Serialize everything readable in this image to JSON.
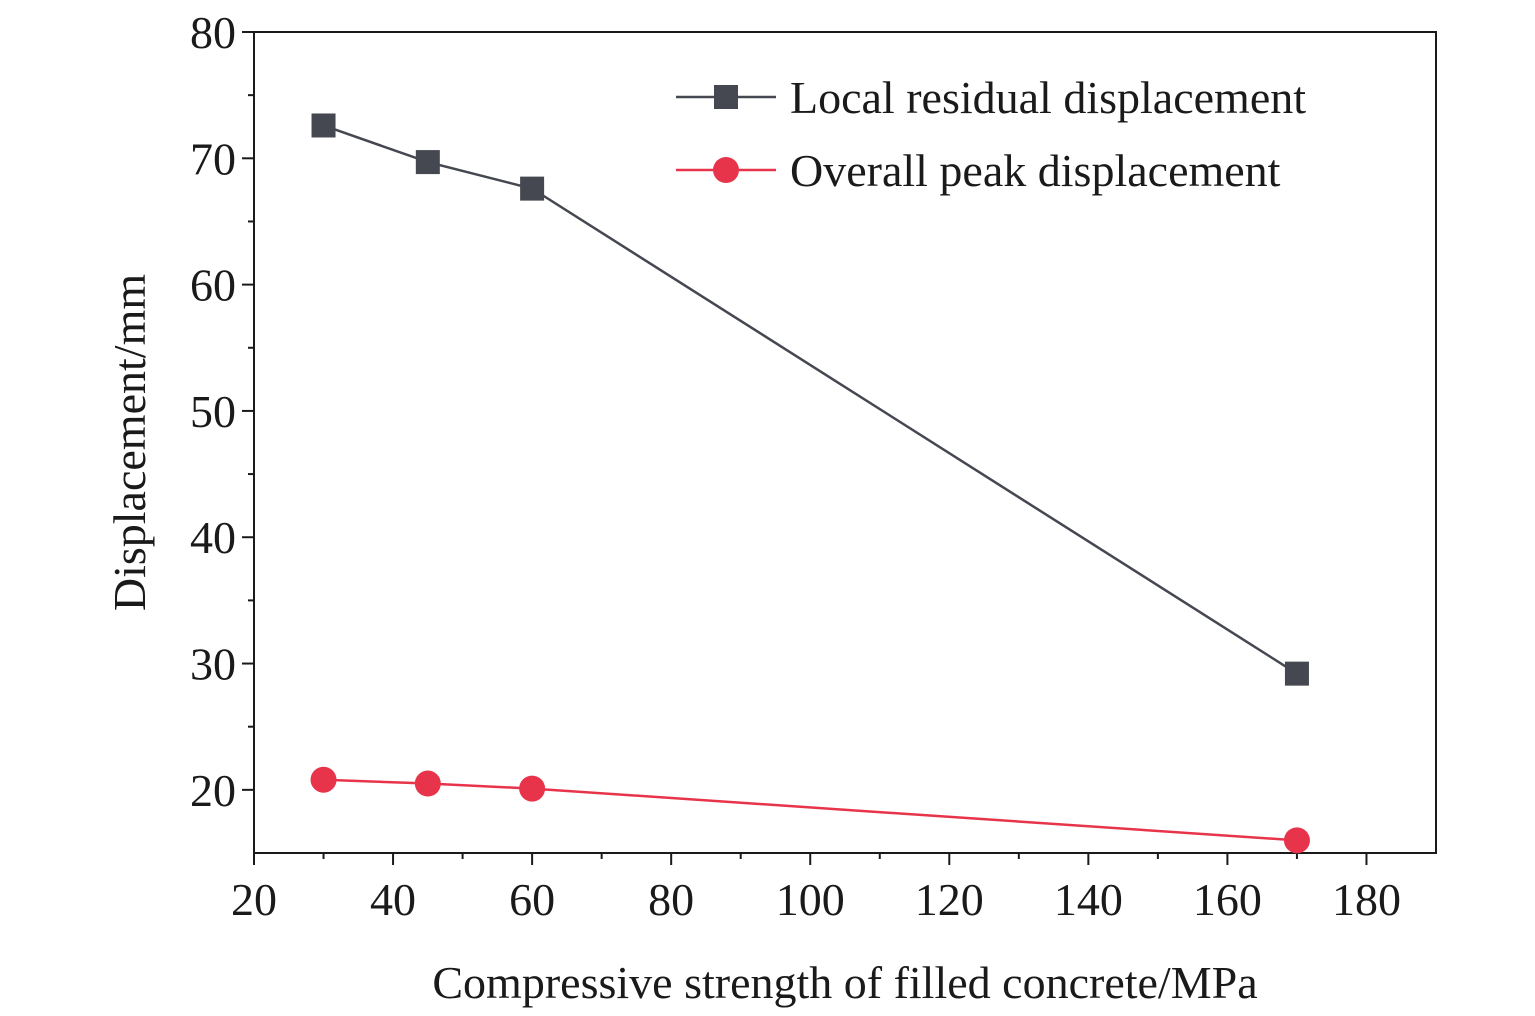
{
  "chart_data": {
    "type": "line",
    "title": "",
    "xlabel": "Compressive strength of filled concrete/MPa",
    "ylabel": "Displacement/mm",
    "xlim": [
      20,
      190
    ],
    "ylim": [
      15,
      80
    ],
    "xticks": [
      20,
      40,
      60,
      80,
      100,
      120,
      140,
      160,
      180
    ],
    "yticks": [
      20,
      30,
      40,
      50,
      60,
      70,
      80
    ],
    "grid": false,
    "legend_position": "top-right",
    "x": [
      30,
      45,
      60,
      170
    ],
    "series": [
      {
        "name": "Local residual displacement",
        "values": [
          72.6,
          69.7,
          67.6,
          29.2
        ],
        "color": "#454850",
        "marker": "square"
      },
      {
        "name": "Overall peak displacement",
        "values": [
          20.8,
          20.5,
          20.1,
          16.0
        ],
        "color": "#e8344a",
        "marker": "circle"
      }
    ]
  }
}
